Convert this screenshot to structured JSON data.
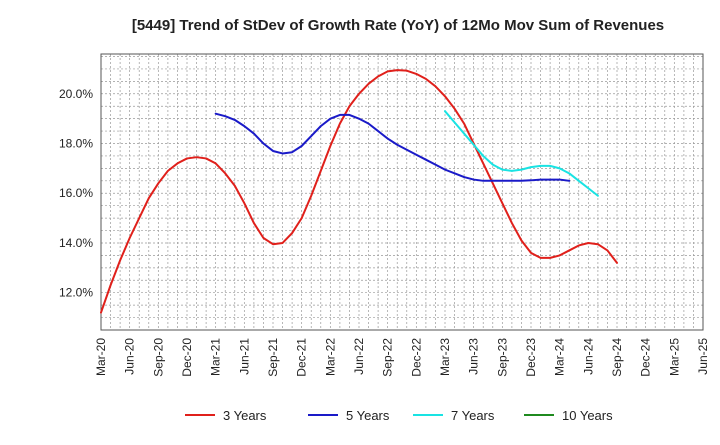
{
  "chart_data": {
    "type": "line",
    "title": "[5449]  Trend of StDev of Growth Rate (YoY) of 12Mo Mov Sum of Revenues",
    "xlabel": "",
    "ylabel": "",
    "grid": true,
    "legend_position": "bottom",
    "x_tick_labels": [
      "Mar-20",
      "Jun-20",
      "Sep-20",
      "Dec-20",
      "Mar-21",
      "Jun-21",
      "Sep-21",
      "Dec-21",
      "Mar-22",
      "Jun-22",
      "Sep-22",
      "Dec-22",
      "Mar-23",
      "Jun-23",
      "Sep-23",
      "Dec-23",
      "Mar-24",
      "Jun-24",
      "Sep-24",
      "Dec-24",
      "Mar-25",
      "Jun-25"
    ],
    "y_tick_labels": [
      "12.0%",
      "14.0%",
      "16.0%",
      "18.0%",
      "20.0%"
    ],
    "y_ticks": [
      12,
      14,
      16,
      18,
      20
    ],
    "ylim": [
      10.5,
      21.6
    ],
    "x_index_range": [
      0,
      63
    ],
    "series": [
      {
        "name": "3 Years",
        "color": "#e0201b",
        "start_index": 0,
        "values": [
          11.2,
          12.3,
          13.3,
          14.2,
          15.0,
          15.8,
          16.4,
          16.9,
          17.2,
          17.4,
          17.45,
          17.4,
          17.2,
          16.8,
          16.3,
          15.6,
          14.8,
          14.2,
          13.95,
          14.0,
          14.4,
          15.0,
          15.9,
          16.9,
          17.9,
          18.8,
          19.5,
          20.0,
          20.4,
          20.7,
          20.9,
          20.95,
          20.93,
          20.8,
          20.6,
          20.3,
          19.9,
          19.4,
          18.8,
          18.0,
          17.2,
          16.4,
          15.6,
          14.8,
          14.1,
          13.6,
          13.4,
          13.4,
          13.5,
          13.7,
          13.9,
          14.0,
          13.95,
          13.7,
          13.2
        ]
      },
      {
        "name": "5 Years",
        "color": "#1a1ac8",
        "start_index": 12,
        "values": [
          19.2,
          19.1,
          18.95,
          18.7,
          18.4,
          18.0,
          17.7,
          17.6,
          17.65,
          17.9,
          18.3,
          18.7,
          19.0,
          19.15,
          19.15,
          19.0,
          18.8,
          18.5,
          18.2,
          17.95,
          17.75,
          17.55,
          17.35,
          17.15,
          16.95,
          16.8,
          16.65,
          16.55,
          16.5,
          16.5,
          16.5,
          16.5,
          16.5,
          16.52,
          16.55,
          16.55,
          16.55,
          16.5
        ]
      },
      {
        "name": "7 Years",
        "color": "#19e3e3",
        "start_index": 36,
        "values": [
          19.3,
          18.85,
          18.4,
          17.95,
          17.5,
          17.15,
          16.95,
          16.9,
          16.95,
          17.05,
          17.1,
          17.1,
          17.0,
          16.8,
          16.5,
          16.2,
          15.9
        ]
      },
      {
        "name": "10 Years",
        "color": "#1f8a1f",
        "start_index": 0,
        "values": []
      }
    ]
  }
}
